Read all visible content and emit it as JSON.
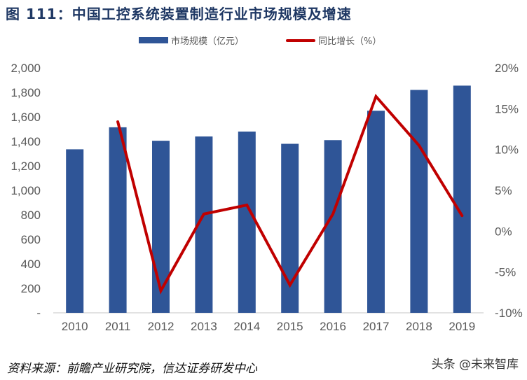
{
  "title": "图 111：中国工控系统装置制造行业市场规模及增速",
  "legend": {
    "bar_label": "市场规模（亿元）",
    "line_label": "同比增长（%）"
  },
  "colors": {
    "bar": "#2f5597",
    "line": "#c00000",
    "title": "#1f3864",
    "axis_text": "#595959",
    "axis_line": "#d9d9d9"
  },
  "source": "资料来源：前瞻产业研究院，信达证券研发中心",
  "watermark": "头条 @未来智库",
  "chart_data": {
    "type": "bar+line",
    "title": "图 111：中国工控系统装置制造行业市场规模及增速",
    "categories": [
      "2010",
      "2011",
      "2012",
      "2013",
      "2014",
      "2015",
      "2016",
      "2017",
      "2018",
      "2019"
    ],
    "series": [
      {
        "name": "市场规模（亿元）",
        "type": "bar",
        "axis": "left",
        "values": [
          1335,
          1515,
          1405,
          1440,
          1480,
          1380,
          1410,
          1650,
          1820,
          1855
        ]
      },
      {
        "name": "同比增长（%）",
        "type": "line",
        "axis": "right",
        "values": [
          null,
          13.4,
          -7.3,
          2.1,
          3.2,
          -6.6,
          2.1,
          16.5,
          10.5,
          1.9
        ]
      }
    ],
    "y_left": {
      "range": [
        0,
        2000
      ],
      "ticks": [
        "-",
        "200",
        "400",
        "600",
        "800",
        "1,000",
        "1,200",
        "1,400",
        "1,600",
        "1,800",
        "2,000"
      ]
    },
    "y_right": {
      "range": [
        -10,
        20
      ],
      "ticks": [
        "-10%",
        "-5%",
        "0%",
        "5%",
        "10%",
        "15%",
        "20%"
      ]
    },
    "xlabel": "",
    "ylabel": "",
    "grid": false,
    "legend_position": "top"
  }
}
